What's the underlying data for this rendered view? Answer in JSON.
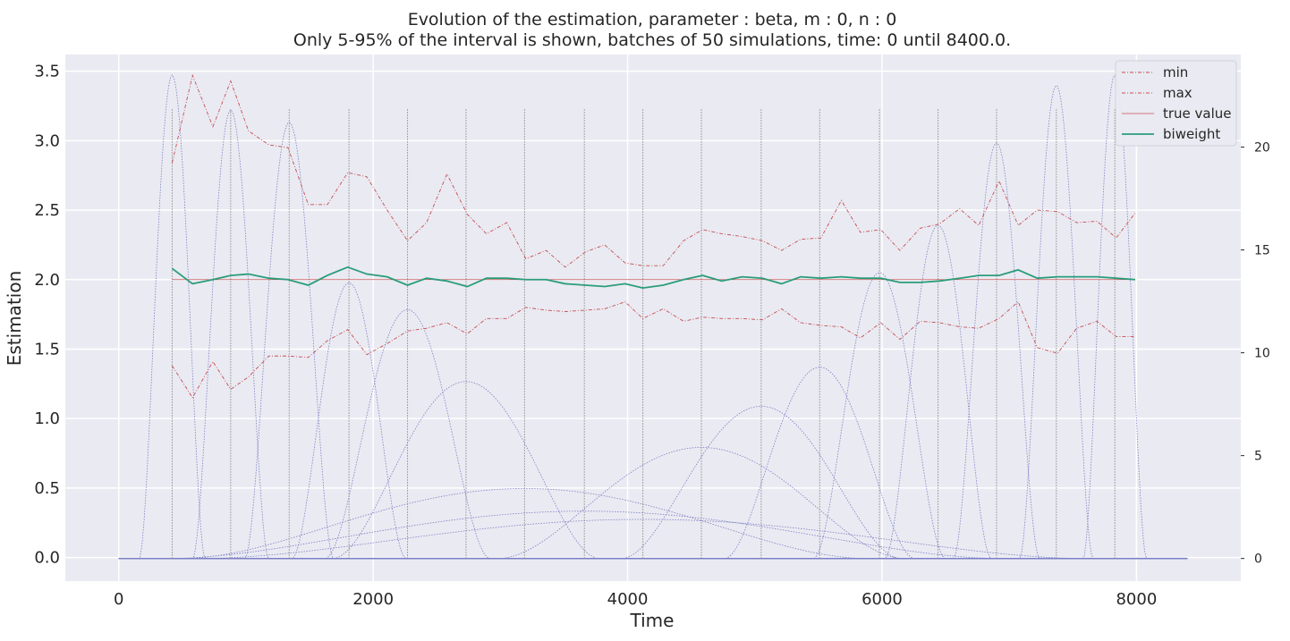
{
  "chart_data": {
    "type": "line",
    "title": "Evolution of the estimation, parameter : beta, m : 0, n : 0",
    "subtitle": "Only 5-95% of the interval is shown, batches of 50 simulations, time: 0 until 8400.0.",
    "xlabel": "Time",
    "ylabel": "Estimation",
    "xlim": [
      -420,
      8820
    ],
    "ylim": [
      -0.17,
      3.62
    ],
    "xticks": [
      0,
      2000,
      4000,
      6000,
      8000
    ],
    "yticks": [
      0.0,
      0.5,
      1.0,
      1.5,
      2.0,
      2.5,
      3.0,
      3.5
    ],
    "ytick_labels": [
      "0.0",
      "0.5",
      "1.0",
      "1.5",
      "2.0",
      "2.5",
      "3.0",
      "3.5"
    ],
    "y2lim": [
      -1.1,
      24.5
    ],
    "y2ticks": [
      0,
      5,
      10,
      15,
      20
    ],
    "legend_position": "top-right",
    "grid": true,
    "x": [
      420,
      580,
      740,
      880,
      1020,
      1180,
      1330,
      1490,
      1640,
      1800,
      1950,
      2110,
      2270,
      2420,
      2580,
      2740,
      2890,
      3050,
      3200,
      3360,
      3510,
      3670,
      3820,
      3980,
      4120,
      4280,
      4440,
      4590,
      4740,
      4900,
      5060,
      5210,
      5360,
      5520,
      5680,
      5830,
      5990,
      6140,
      6300,
      6450,
      6610,
      6760,
      6920,
      7070,
      7220,
      7380,
      7530,
      7690,
      7840,
      7990
    ],
    "series": [
      {
        "name": "min",
        "style": "dashdot",
        "color": "#c44e52",
        "values": [
          1.38,
          1.15,
          1.41,
          1.21,
          1.3,
          1.45,
          1.45,
          1.44,
          1.56,
          1.64,
          1.46,
          1.54,
          1.63,
          1.65,
          1.69,
          1.61,
          1.72,
          1.72,
          1.8,
          1.78,
          1.77,
          1.78,
          1.79,
          1.84,
          1.72,
          1.79,
          1.7,
          1.73,
          1.72,
          1.72,
          1.71,
          1.79,
          1.69,
          1.67,
          1.66,
          1.58,
          1.69,
          1.57,
          1.7,
          1.69,
          1.66,
          1.65,
          1.72,
          1.84,
          1.51,
          1.47,
          1.65,
          1.7,
          1.59,
          1.59
        ]
      },
      {
        "name": "max",
        "style": "dashdot",
        "color": "#c44e52",
        "values": [
          2.84,
          3.47,
          3.1,
          3.43,
          3.07,
          2.97,
          2.95,
          2.54,
          2.54,
          2.77,
          2.74,
          2.5,
          2.28,
          2.41,
          2.76,
          2.47,
          2.33,
          2.41,
          2.15,
          2.21,
          2.09,
          2.2,
          2.25,
          2.12,
          2.1,
          2.1,
          2.28,
          2.36,
          2.33,
          2.31,
          2.28,
          2.21,
          2.29,
          2.3,
          2.57,
          2.34,
          2.36,
          2.21,
          2.37,
          2.4,
          2.51,
          2.39,
          2.71,
          2.39,
          2.5,
          2.49,
          2.41,
          2.42,
          2.3,
          2.48
        ]
      },
      {
        "name": "true value",
        "style": "solid",
        "color": "#c44e52",
        "values": [
          2.0,
          2.0,
          2.0,
          2.0,
          2.0,
          2.0,
          2.0,
          2.0,
          2.0,
          2.0,
          2.0,
          2.0,
          2.0,
          2.0,
          2.0,
          2.0,
          2.0,
          2.0,
          2.0,
          2.0,
          2.0,
          2.0,
          2.0,
          2.0,
          2.0,
          2.0,
          2.0,
          2.0,
          2.0,
          2.0,
          2.0,
          2.0,
          2.0,
          2.0,
          2.0,
          2.0,
          2.0,
          2.0,
          2.0,
          2.0,
          2.0,
          2.0,
          2.0,
          2.0,
          2.0,
          2.0,
          2.0,
          2.0,
          2.0,
          2.0
        ]
      },
      {
        "name": "biweight",
        "style": "solid",
        "color": "#2a9d7a",
        "values": [
          2.08,
          1.97,
          2.0,
          2.03,
          2.04,
          2.01,
          2.0,
          1.96,
          2.03,
          2.09,
          2.04,
          2.02,
          1.96,
          2.01,
          1.99,
          1.95,
          2.01,
          2.01,
          2.0,
          2.0,
          1.97,
          1.96,
          1.95,
          1.97,
          1.94,
          1.96,
          2.0,
          2.03,
          1.99,
          2.02,
          2.01,
          1.97,
          2.02,
          2.01,
          2.02,
          2.01,
          2.01,
          1.98,
          1.98,
          1.99,
          2.01,
          2.03,
          2.03,
          2.07,
          2.01,
          2.02,
          2.02,
          2.02,
          2.01,
          2.0
        ]
      }
    ],
    "kernel_weights": {
      "description": "dotted bell-shaped curves plotted against right axis",
      "color": "#7b7fc4",
      "curves": [
        {
          "center": 420,
          "width": 260,
          "height": 23.5
        },
        {
          "center": 880,
          "width": 300,
          "height": 21.8
        },
        {
          "center": 1340,
          "width": 350,
          "height": 21.2
        },
        {
          "center": 1810,
          "width": 450,
          "height": 13.4
        },
        {
          "center": 2270,
          "width": 650,
          "height": 12.1
        },
        {
          "center": 2730,
          "width": 1050,
          "height": 8.6
        },
        {
          "center": 3190,
          "width": 2700,
          "height": 3.4
        },
        {
          "center": 3660,
          "width": 3300,
          "height": 2.3
        },
        {
          "center": 4120,
          "width": 3500,
          "height": 1.9
        },
        {
          "center": 4580,
          "width": 1600,
          "height": 5.4
        },
        {
          "center": 5050,
          "width": 1100,
          "height": 7.4
        },
        {
          "center": 5510,
          "width": 750,
          "height": 9.3
        },
        {
          "center": 5980,
          "width": 520,
          "height": 13.9
        },
        {
          "center": 6440,
          "width": 420,
          "height": 16.2
        },
        {
          "center": 6900,
          "width": 340,
          "height": 20.2
        },
        {
          "center": 7370,
          "width": 290,
          "height": 23.0
        },
        {
          "center": 7830,
          "width": 250,
          "height": 23.5
        }
      ],
      "vertical_markers": [
        420,
        880,
        1340,
        1810,
        2270,
        2730,
        3190,
        3660,
        4120,
        4580,
        5050,
        5510,
        5980,
        6440,
        6900,
        7370,
        7830
      ],
      "support": [
        0,
        8400
      ]
    }
  }
}
